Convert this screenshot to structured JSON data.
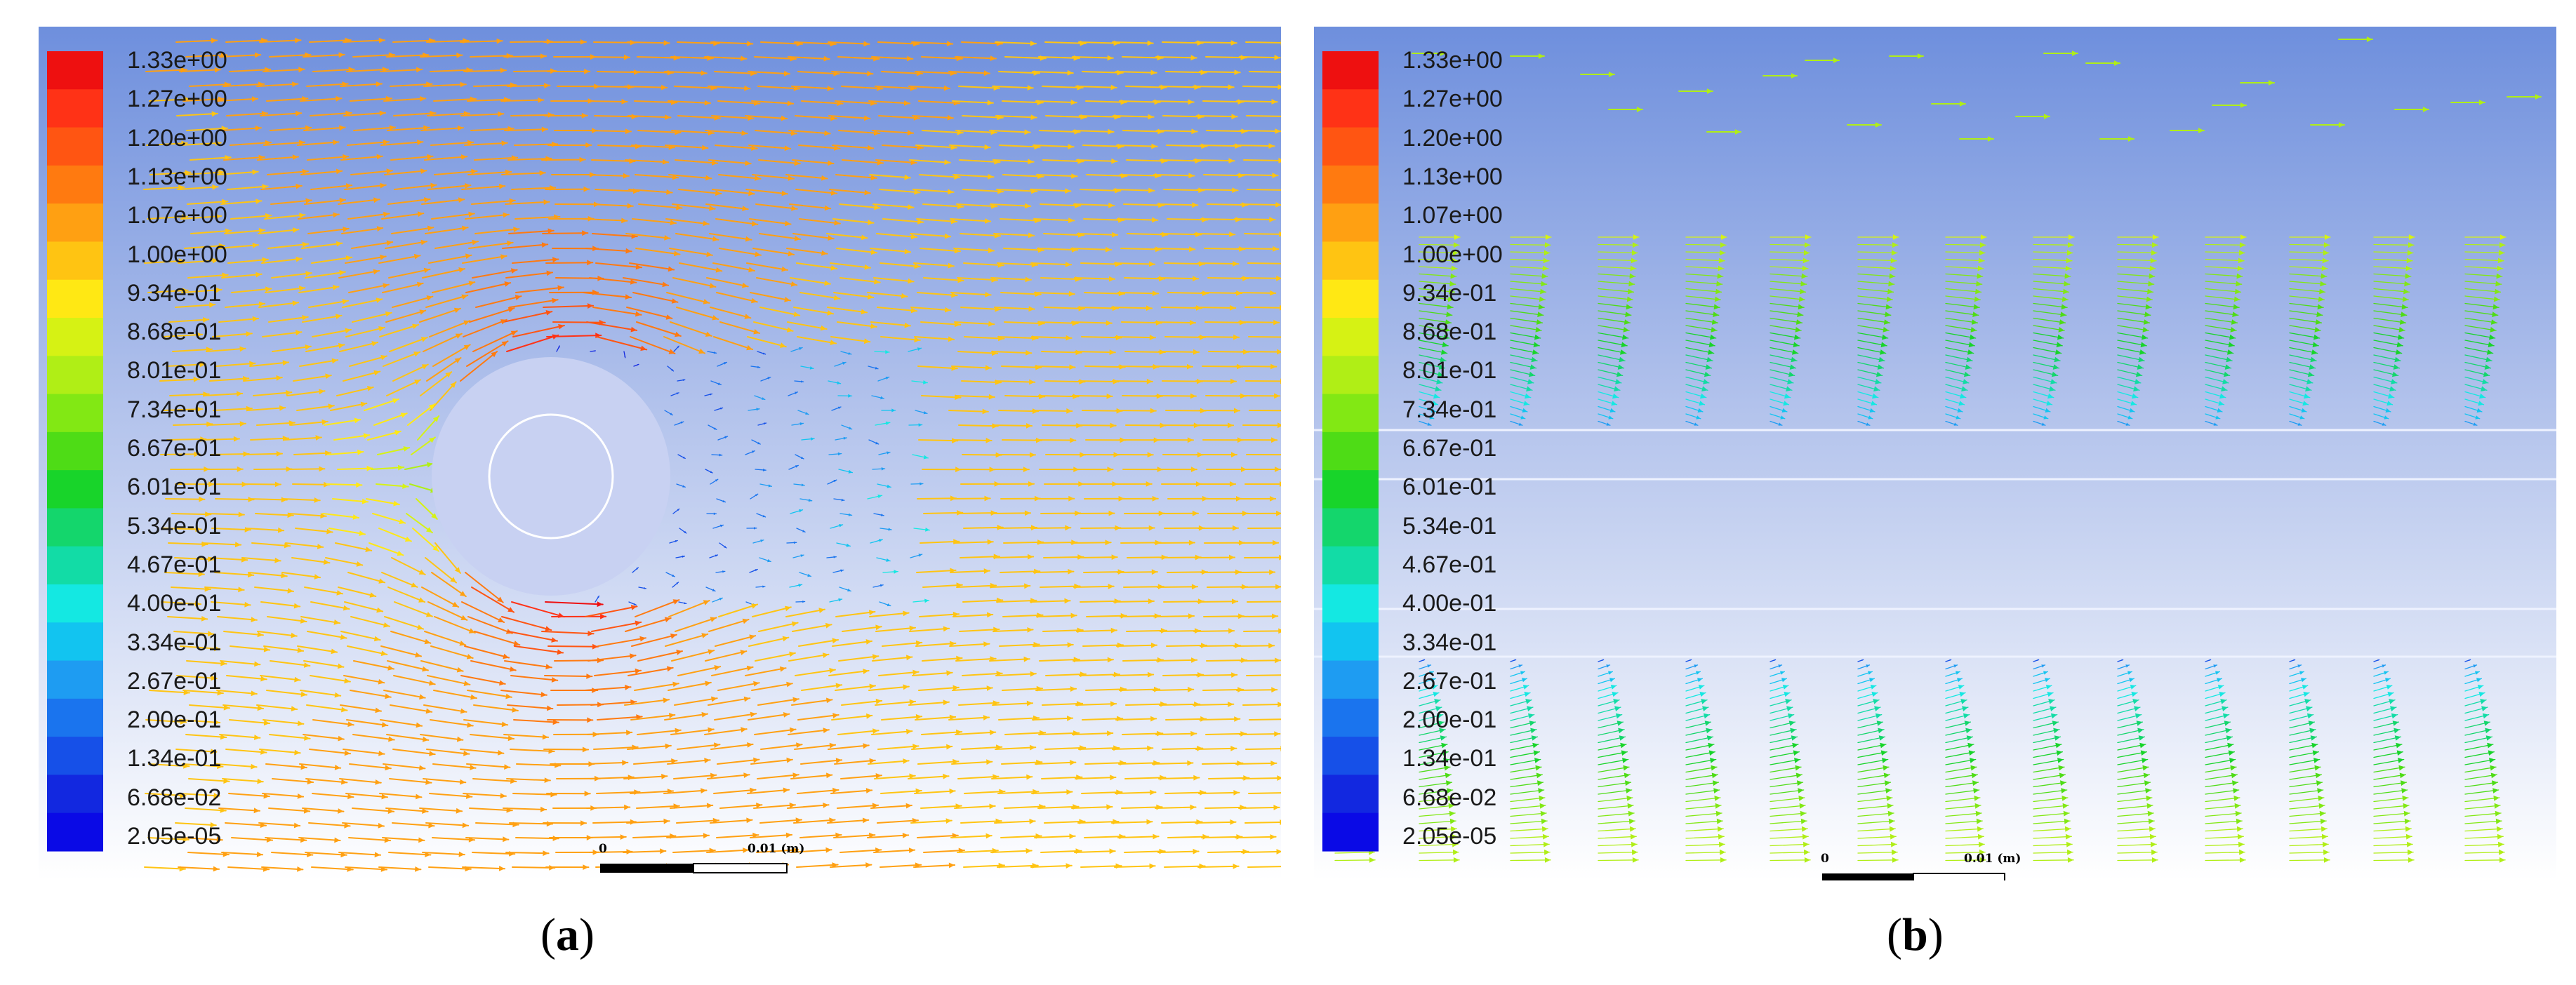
{
  "legend": {
    "labels": [
      "1.33e+00",
      "1.27e+00",
      "1.20e+00",
      "1.13e+00",
      "1.07e+00",
      "1.00e+00",
      "9.34e-01",
      "8.68e-01",
      "8.01e-01",
      "7.34e-01",
      "6.67e-01",
      "6.01e-01",
      "5.34e-01",
      "4.67e-01",
      "4.00e-01",
      "3.34e-01",
      "2.67e-01",
      "2.00e-01",
      "1.34e-01",
      "6.68e-02",
      "2.05e-05"
    ],
    "colors": [
      "#ee1010",
      "#ff3216",
      "#ff5512",
      "#ff7a10",
      "#ffa012",
      "#ffc412",
      "#ffe814",
      "#d6f214",
      "#b0ee16",
      "#82e814",
      "#4edc16",
      "#18d42a",
      "#14d66c",
      "#12dca6",
      "#14e8e2",
      "#12c4f0",
      "#1e9cf2",
      "#1a74ee",
      "#1650e8",
      "#1228e0",
      "#0a0ae6"
    ]
  },
  "panels": [
    {
      "id": "a",
      "caption_open": "(",
      "caption_letter": "a",
      "caption_close": ")",
      "scale_zero": "0",
      "scale_length": "0.01 (m)"
    },
    {
      "id": "b",
      "caption_open": "(",
      "caption_letter": "b",
      "caption_close": ")",
      "scale_zero": "0",
      "scale_length": "0.01 (m)"
    }
  ]
}
